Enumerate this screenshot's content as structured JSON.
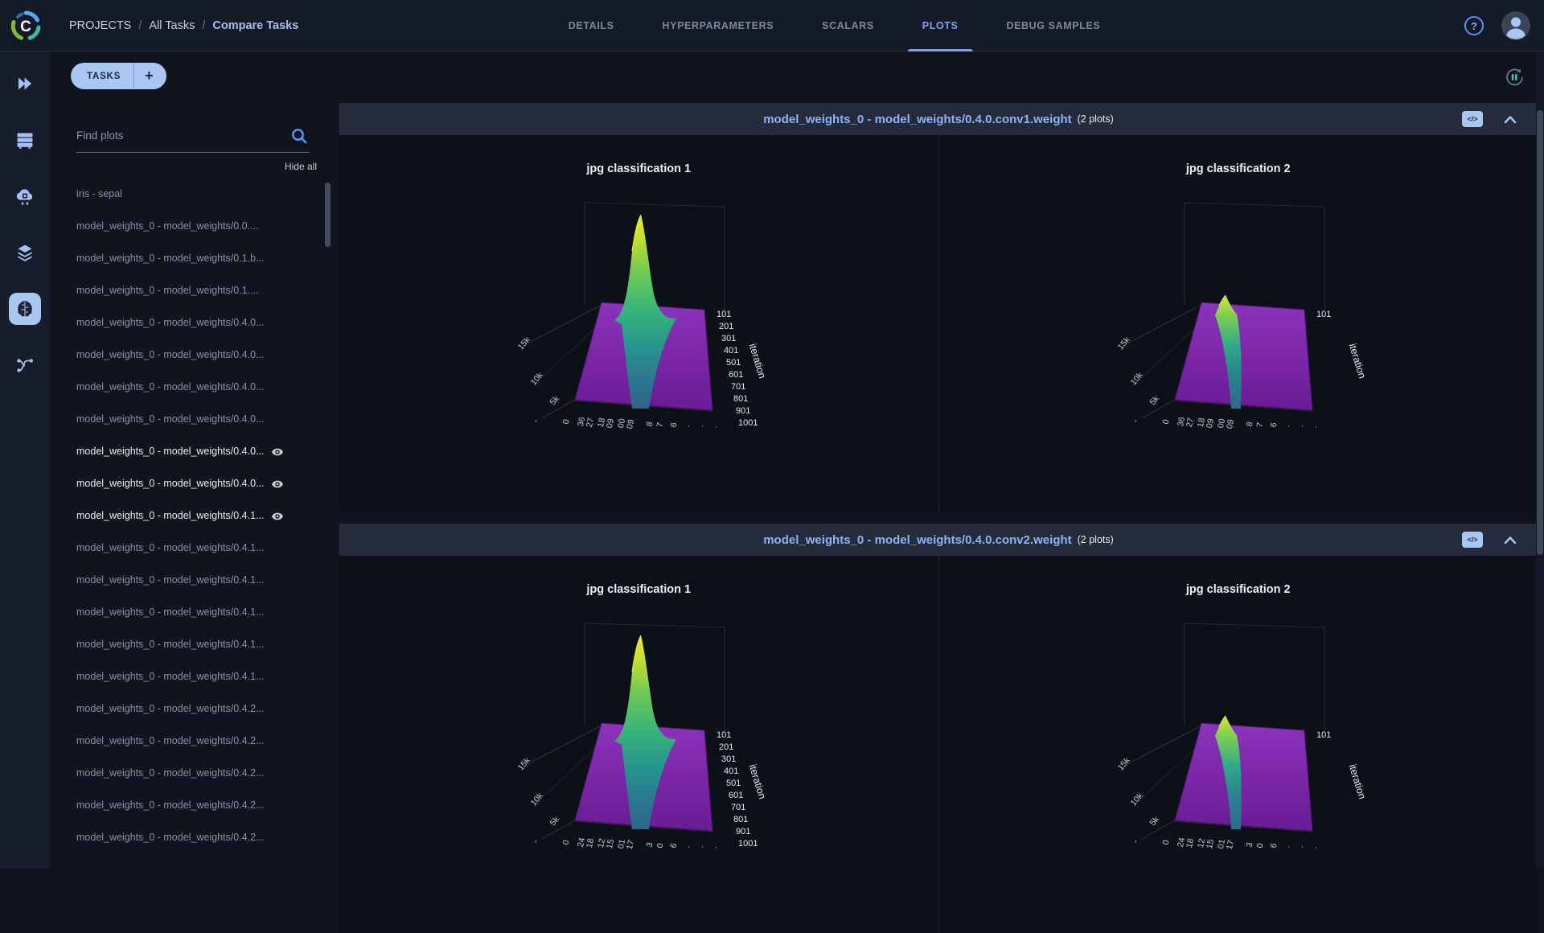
{
  "header": {
    "breadcrumb": [
      "PROJECTS",
      "All Tasks",
      "Compare Tasks"
    ],
    "tabs": [
      "DETAILS",
      "HYPERPARAMETERS",
      "SCALARS",
      "PLOTS",
      "DEBUG SAMPLES"
    ],
    "active_tab": "PLOTS"
  },
  "sidebar": {
    "icons": [
      "projects",
      "workers-and-queues",
      "cloud-autoscaler",
      "datasets",
      "experiments",
      "pipelines"
    ],
    "active_icon": "experiments"
  },
  "toolbar": {
    "tasks_label": "TASKS",
    "add_label": "+"
  },
  "plot_list": {
    "search_placeholder": "Find plots",
    "hide_all_label": "Hide all",
    "items": [
      {
        "label": "iris - sepal",
        "visible": false
      },
      {
        "label": "model_weights_0 - model_weights/0.0....",
        "visible": false
      },
      {
        "label": "model_weights_0 - model_weights/0.1.b...",
        "visible": false
      },
      {
        "label": "model_weights_0 - model_weights/0.1....",
        "visible": false
      },
      {
        "label": "model_weights_0 - model_weights/0.4.0...",
        "visible": false
      },
      {
        "label": "model_weights_0 - model_weights/0.4.0...",
        "visible": false
      },
      {
        "label": "model_weights_0 - model_weights/0.4.0...",
        "visible": false
      },
      {
        "label": "model_weights_0 - model_weights/0.4.0...",
        "visible": false
      },
      {
        "label": "model_weights_0 - model_weights/0.4.0...",
        "visible": true
      },
      {
        "label": "model_weights_0 - model_weights/0.4.0...",
        "visible": true
      },
      {
        "label": "model_weights_0 - model_weights/0.4.1...",
        "visible": true
      },
      {
        "label": "model_weights_0 - model_weights/0.4.1...",
        "visible": false
      },
      {
        "label": "model_weights_0 - model_weights/0.4.1...",
        "visible": false
      },
      {
        "label": "model_weights_0 - model_weights/0.4.1...",
        "visible": false
      },
      {
        "label": "model_weights_0 - model_weights/0.4.1...",
        "visible": false
      },
      {
        "label": "model_weights_0 - model_weights/0.4.1...",
        "visible": false
      },
      {
        "label": "model_weights_0 - model_weights/0.4.2...",
        "visible": false
      },
      {
        "label": "model_weights_0 - model_weights/0.4.2...",
        "visible": false
      },
      {
        "label": "model_weights_0 - model_weights/0.4.2...",
        "visible": false
      },
      {
        "label": "model_weights_0 - model_weights/0.4.2...",
        "visible": false
      },
      {
        "label": "model_weights_0 - model_weights/0.4.2...",
        "visible": false
      }
    ]
  },
  "section_controls": {
    "embed_code_label": "</>"
  },
  "sections": [
    {
      "title": "model_weights_0 - model_weights/0.4.0.conv1.weight",
      "count_label": "(2 plots)",
      "plots": [
        {
          "title": "jpg classification 1",
          "variant": "peak",
          "z_ticks": [
            "5k",
            "10k",
            "15k"
          ],
          "iter_ticks": [
            "101",
            "201",
            "301",
            "401",
            "501",
            "601",
            "701",
            "801",
            "901",
            "1001"
          ],
          "iter_label": "iteration",
          "x_tick_fragments": [
            "-",
            "0",
            "36",
            "27",
            "18",
            "09",
            "00",
            "09",
            "8",
            "7",
            "6",
            ".",
            ".",
            "."
          ]
        },
        {
          "title": "jpg classification 2",
          "variant": "ridge",
          "z_ticks": [
            "5k",
            "10k",
            "15k"
          ],
          "iter_ticks": [
            "101"
          ],
          "iter_label": "iteration",
          "x_tick_fragments": [
            "-",
            "0",
            "36",
            "27",
            "18",
            "09",
            "00",
            "09",
            "8",
            "7",
            "6",
            ".",
            ".",
            "."
          ]
        }
      ]
    },
    {
      "title": "model_weights_0 - model_weights/0.4.0.conv2.weight",
      "count_label": "(2 plots)",
      "plots": [
        {
          "title": "jpg classification 1",
          "variant": "peak",
          "z_ticks": [
            "5k",
            "10k",
            "15k"
          ],
          "iter_ticks": [
            "101",
            "201",
            "301",
            "401",
            "501",
            "601",
            "701",
            "801",
            "901",
            "1001"
          ],
          "iter_label": "iteration",
          "x_tick_fragments": [
            "-",
            "0",
            "24",
            "18",
            "12",
            "15",
            "01",
            "17",
            "3",
            "0",
            "6",
            ".",
            ".",
            "."
          ]
        },
        {
          "title": "jpg classification 2",
          "variant": "ridge",
          "z_ticks": [
            "5k",
            "10k",
            "15k"
          ],
          "iter_ticks": [
            "101"
          ],
          "iter_label": "iteration",
          "x_tick_fragments": [
            "-",
            "0",
            "24",
            "18",
            "12",
            "15",
            "01",
            "17",
            "3",
            "0",
            "6",
            ".",
            ".",
            "."
          ]
        }
      ]
    }
  ],
  "chart_data": [
    {
      "type": "surface",
      "group": "model_weights_0 - model_weights/0.4.0.conv1.weight",
      "title": "jpg classification 1",
      "colormap": "viridis",
      "z_ticks": [
        "5k",
        "10k",
        "15k"
      ],
      "iteration_ticks": [
        101,
        201,
        301,
        401,
        501,
        601,
        701,
        801,
        901,
        1001
      ],
      "shape": "tall narrow histogram peak centered near 0 rising well above 15k, flat near-zero purple plane elsewhere"
    },
    {
      "type": "surface",
      "group": "model_weights_0 - model_weights/0.4.0.conv1.weight",
      "title": "jpg classification 2",
      "colormap": "viridis",
      "z_ticks": [
        "5k",
        "10k",
        "15k"
      ],
      "iteration_ticks": [
        101
      ],
      "shape": "mostly flat purple plane with small green ridge at back descending to a central notch"
    },
    {
      "type": "surface",
      "group": "model_weights_0 - model_weights/0.4.0.conv2.weight",
      "title": "jpg classification 1",
      "colormap": "viridis",
      "z_ticks": [
        "5k",
        "10k",
        "15k"
      ],
      "iteration_ticks": [
        101,
        201,
        301,
        401,
        501,
        601,
        701,
        801,
        901,
        1001
      ],
      "shape": "tall narrow histogram peak centered near 0, flat near-zero purple plane elsewhere"
    },
    {
      "type": "surface",
      "group": "model_weights_0 - model_weights/0.4.0.conv2.weight",
      "title": "jpg classification 2",
      "colormap": "viridis",
      "z_ticks": [
        "5k",
        "10k",
        "15k"
      ],
      "iteration_ticks": [
        101
      ],
      "shape": "mostly flat purple plane with small green ridge at back descending to a central notch"
    }
  ],
  "colors": {
    "accent": "#a9c7f3",
    "link_blue": "#8ab4f8",
    "teal": "#3fc0ad",
    "floor_purple": "#8c33bb",
    "peak_yellow": "#f4e926",
    "bg_dark": "#0d1017"
  }
}
